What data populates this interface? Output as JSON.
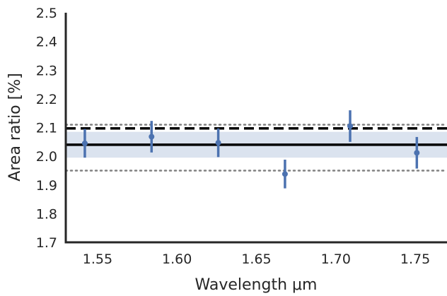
{
  "chart_data": {
    "type": "scatter",
    "title": "",
    "xlabel": "Wavelength μm",
    "ylabel": "Area ratio [%]",
    "xlim": [
      1.53,
      1.77
    ],
    "ylim": [
      1.7,
      2.5
    ],
    "x_ticks": [
      "1.55",
      "1.60",
      "1.65",
      "1.70",
      "1.75"
    ],
    "y_ticks": [
      "1.7",
      "1.8",
      "1.9",
      "2.0",
      "2.1",
      "2.2",
      "2.3",
      "2.4",
      "2.5"
    ],
    "grid": false,
    "points": [
      {
        "x": 1.542,
        "y": 2.045,
        "err": 0.05
      },
      {
        "x": 1.584,
        "y": 2.068,
        "err": 0.055
      },
      {
        "x": 1.626,
        "y": 2.047,
        "err": 0.05
      },
      {
        "x": 1.668,
        "y": 1.938,
        "err": 0.05
      },
      {
        "x": 1.709,
        "y": 2.105,
        "err": 0.055
      },
      {
        "x": 1.751,
        "y": 2.012,
        "err": 0.055
      }
    ],
    "mean_line": 2.04,
    "band": [
      1.995,
      2.085
    ],
    "dashed_line": 2.097,
    "dotted_lines": [
      1.95,
      2.11
    ],
    "colors": {
      "points": "#4c72b0",
      "band": "#dbe3ef",
      "mean_line": "#000000",
      "dashed_line": "#000000",
      "dotted_lines": "#808080",
      "axes": "#262626"
    }
  }
}
